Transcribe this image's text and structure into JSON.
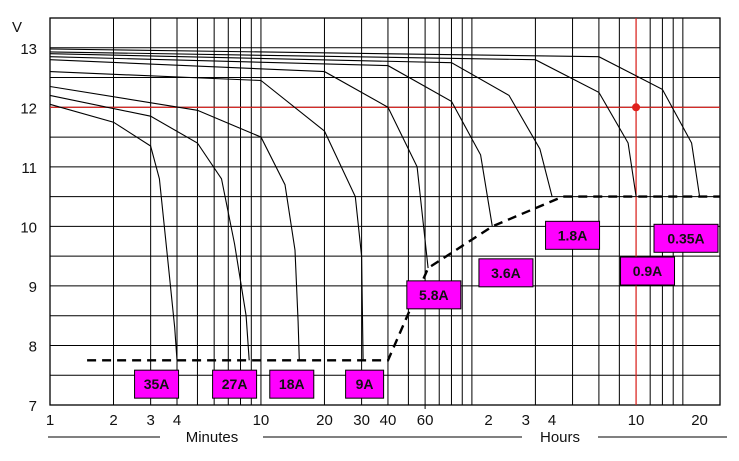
{
  "chart_data": {
    "type": "line",
    "y_unit_label": "V",
    "ylim": [
      7,
      13.5
    ],
    "y_ticks": [
      7,
      8,
      9,
      10,
      11,
      12,
      13
    ],
    "x_scale": "log",
    "x_unit": "minutes",
    "xlim_minutes": [
      1,
      1500
    ],
    "x_ticks": [
      {
        "label": "1",
        "minutes": 1
      },
      {
        "label": "2",
        "minutes": 2
      },
      {
        "label": "3",
        "minutes": 3
      },
      {
        "label": "4",
        "minutes": 4
      },
      {
        "label": "10",
        "minutes": 10
      },
      {
        "label": "20",
        "minutes": 20
      },
      {
        "label": "30",
        "minutes": 30
      },
      {
        "label": "40",
        "minutes": 40
      },
      {
        "label": "60",
        "minutes": 60
      },
      {
        "label": "2",
        "minutes": 120
      },
      {
        "label": "3",
        "minutes": 180
      },
      {
        "label": "4",
        "minutes": 240
      },
      {
        "label": "10",
        "minutes": 600
      },
      {
        "label": "20",
        "minutes": 1200
      }
    ],
    "x_group_labels": [
      "Minutes",
      "Hours"
    ],
    "grid": true,
    "series": [
      {
        "name": "35A",
        "points": [
          [
            1,
            12.05
          ],
          [
            2,
            11.75
          ],
          [
            3,
            11.35
          ],
          [
            3.3,
            10.8
          ],
          [
            3.6,
            9.5
          ],
          [
            3.9,
            8.3
          ],
          [
            4.0,
            7.75
          ]
        ]
      },
      {
        "name": "27A",
        "points": [
          [
            1,
            12.2
          ],
          [
            3,
            11.85
          ],
          [
            5,
            11.4
          ],
          [
            6.5,
            10.8
          ],
          [
            7.5,
            9.7
          ],
          [
            8.5,
            8.5
          ],
          [
            8.8,
            7.75
          ]
        ]
      },
      {
        "name": "18A",
        "points": [
          [
            1,
            12.35
          ],
          [
            5,
            11.95
          ],
          [
            10,
            11.5
          ],
          [
            13,
            10.7
          ],
          [
            14.5,
            9.6
          ],
          [
            15,
            8.4
          ],
          [
            15.2,
            7.75
          ]
        ]
      },
      {
        "name": "9A",
        "points": [
          [
            1,
            12.6
          ],
          [
            10,
            12.45
          ],
          [
            20,
            11.6
          ],
          [
            28,
            10.5
          ],
          [
            30,
            9.5
          ],
          [
            30.5,
            7.75
          ]
        ]
      },
      {
        "name": "5.8A",
        "points": [
          [
            1,
            12.8
          ],
          [
            20,
            12.6
          ],
          [
            40,
            12.0
          ],
          [
            55,
            11.0
          ],
          [
            62,
            9.3
          ]
        ]
      },
      {
        "name": "3.6A",
        "points": [
          [
            1,
            12.85
          ],
          [
            40,
            12.7
          ],
          [
            80,
            12.1
          ],
          [
            110,
            11.2
          ],
          [
            125,
            10.0
          ]
        ]
      },
      {
        "name": "1.8A",
        "points": [
          [
            1,
            12.9
          ],
          [
            80,
            12.75
          ],
          [
            150,
            12.2
          ],
          [
            210,
            11.3
          ],
          [
            240,
            10.5
          ]
        ]
      },
      {
        "name": "0.9A",
        "points": [
          [
            1,
            12.93
          ],
          [
            200,
            12.8
          ],
          [
            400,
            12.25
          ],
          [
            550,
            11.4
          ],
          [
            600,
            10.5
          ],
          [
            600,
            10.5
          ]
        ]
      },
      {
        "name": "0.35A",
        "points": [
          [
            1,
            12.98
          ],
          [
            400,
            12.85
          ],
          [
            800,
            12.3
          ],
          [
            1100,
            11.4
          ],
          [
            1200,
            10.5
          ]
        ]
      }
    ],
    "cutoff_line": [
      [
        1.5,
        7.75
      ],
      [
        40,
        7.75
      ],
      [
        62,
        9.3
      ],
      [
        125,
        10.0
      ],
      [
        270,
        10.5
      ],
      [
        1500,
        10.5
      ]
    ],
    "reference_point": {
      "minutes": 600,
      "volts": 12.0
    },
    "labels": [
      {
        "text": "35A",
        "minutes": 3.2,
        "volts": 7.35
      },
      {
        "text": "27A",
        "minutes": 7.5,
        "volts": 7.35
      },
      {
        "text": "18A",
        "minutes": 14,
        "volts": 7.35
      },
      {
        "text": "9A",
        "minutes": 31,
        "volts": 7.35
      },
      {
        "text": "5.8A",
        "minutes": 66,
        "volts": 8.85
      },
      {
        "text": "3.6A",
        "minutes": 145,
        "volts": 9.22
      },
      {
        "text": "1.8A",
        "minutes": 300,
        "volts": 9.85
      },
      {
        "text": "0.9A",
        "minutes": 680,
        "volts": 9.25
      },
      {
        "text": "0.35A",
        "minutes": 1400,
        "volts": 9.8
      }
    ]
  }
}
